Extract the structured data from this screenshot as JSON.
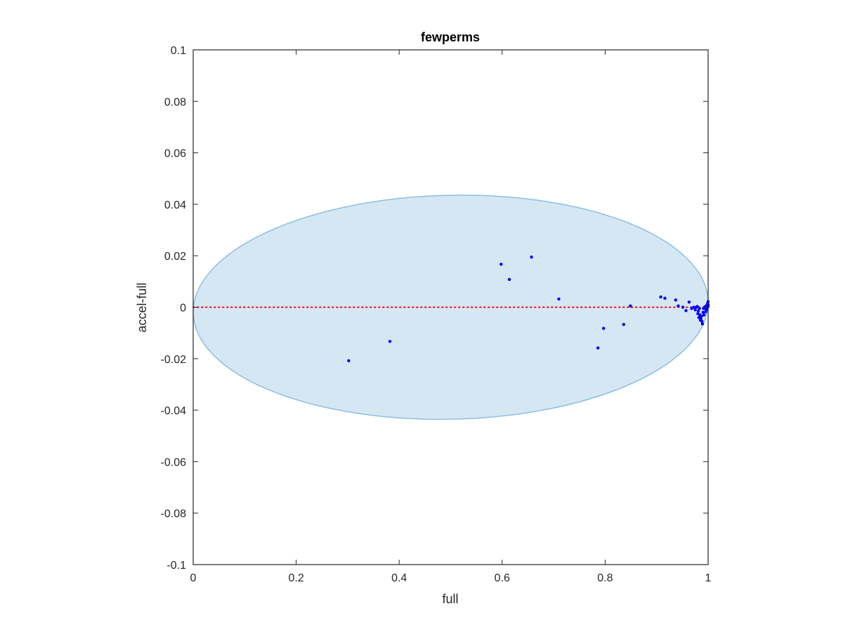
{
  "chart_data": {
    "type": "scatter",
    "title": "fewperms",
    "xlabel": "full",
    "ylabel": "accel-full",
    "xlim": [
      0,
      1
    ],
    "ylim": [
      -0.1,
      0.1
    ],
    "xticks": [
      0,
      0.2,
      0.4,
      0.6,
      0.8,
      1
    ],
    "xtick_labels": [
      "0",
      "0.2",
      "0.4",
      "0.6",
      "0.8",
      "1"
    ],
    "yticks": [
      0.1,
      0.08,
      0.06,
      0.04,
      0.02,
      0,
      -0.02,
      -0.04,
      -0.06,
      -0.08,
      -0.1
    ],
    "ytick_labels": [
      "0.1",
      "0.08",
      "0.06",
      "0.04",
      "0.02",
      "0",
      "-0.02",
      "-0.04",
      "-0.06",
      "-0.08",
      "-0.1"
    ],
    "grid": false,
    "box": true,
    "colors": {
      "points": "#0000ff",
      "zero_line": "#ff0000",
      "ellipse_fill": "#d6e7f4",
      "ellipse_stroke": "#8bbfe0",
      "axes": "#262626"
    },
    "reference_line": {
      "y": 0,
      "style": "dotted",
      "x_range": [
        0,
        1
      ]
    },
    "region": {
      "shape": "ellipse",
      "center": [
        0.5,
        0.0
      ],
      "half_width": 0.5,
      "half_height": 0.0435,
      "tilt_deg": -1.3
    },
    "series": [
      {
        "x": [
          0.302,
          0.382,
          0.598,
          0.614,
          0.657,
          0.71,
          0.786,
          0.797,
          0.836,
          0.849,
          0.908,
          0.916,
          0.937,
          0.942,
          0.951,
          0.957,
          0.963,
          0.968,
          0.972,
          0.975,
          0.977,
          0.979,
          0.98,
          0.981,
          0.982,
          0.983,
          0.984,
          0.985,
          0.986,
          0.987,
          0.988,
          0.989,
          0.99,
          0.991,
          0.992,
          0.993,
          0.994,
          0.995,
          0.996,
          0.997,
          0.998,
          0.999,
          0.999,
          1.0,
          1.0,
          1.0
        ],
        "y": [
          -0.0208,
          -0.0133,
          0.0167,
          0.0108,
          0.0195,
          0.0032,
          -0.0158,
          -0.0082,
          -0.0067,
          0.0005,
          0.004,
          0.0035,
          0.0028,
          0.0005,
          0.0,
          -0.0013,
          0.002,
          -0.0005,
          0.0,
          -0.001,
          0.0,
          0.0003,
          -0.0025,
          -0.0015,
          -0.004,
          -0.0005,
          -0.003,
          -0.005,
          -0.0045,
          -0.0035,
          -0.0055,
          -0.0065,
          -0.002,
          -0.0005,
          -0.003,
          0.0,
          -0.0005,
          -0.0018,
          0.0005,
          -0.001,
          0.0008,
          0.0015,
          0.0,
          0.0022,
          0.001,
          0.0003
        ]
      }
    ]
  }
}
